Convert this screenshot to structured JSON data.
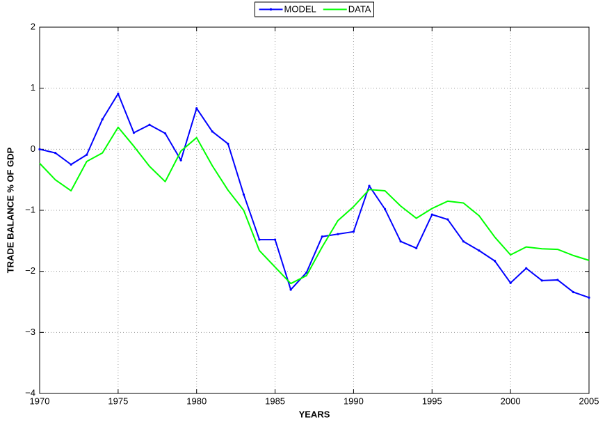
{
  "chart_data": {
    "type": "line",
    "x_label": "YEARS",
    "y_label": "TRADE BALANCE % OF GDP",
    "x": [
      1970,
      1971,
      1972,
      1973,
      1974,
      1975,
      1976,
      1977,
      1978,
      1979,
      1980,
      1981,
      1982,
      1983,
      1984,
      1985,
      1986,
      1987,
      1988,
      1989,
      1990,
      1991,
      1992,
      1993,
      1994,
      1995,
      1996,
      1997,
      1998,
      1999,
      2000,
      2001,
      2002,
      2003,
      2004,
      2005
    ],
    "series": [
      {
        "name": "MODEL",
        "color": "#0000ff",
        "marker": true,
        "values": [
          0.0,
          -0.06,
          -0.25,
          -0.09,
          0.49,
          0.91,
          0.27,
          0.4,
          0.26,
          -0.18,
          0.67,
          0.29,
          0.09,
          -0.74,
          -1.48,
          -1.48,
          -2.3,
          -2.02,
          -1.43,
          -1.39,
          -1.35,
          -0.6,
          -0.98,
          -1.51,
          -1.62,
          -1.07,
          -1.15,
          -1.51,
          -1.66,
          -1.83,
          -2.19,
          -1.95,
          -2.15,
          -2.14,
          -2.34,
          -2.43
        ]
      },
      {
        "name": "DATA",
        "color": "#00ff00",
        "marker": false,
        "values": [
          -0.23,
          -0.5,
          -0.68,
          -0.2,
          -0.06,
          0.36,
          0.05,
          -0.28,
          -0.53,
          -0.03,
          0.19,
          -0.27,
          -0.67,
          -1.0,
          -1.66,
          -1.93,
          -2.2,
          -2.07,
          -1.6,
          -1.17,
          -0.94,
          -0.66,
          -0.68,
          -0.93,
          -1.13,
          -0.97,
          -0.85,
          -0.88,
          -1.09,
          -1.44,
          -1.73,
          -1.6,
          -1.63,
          -1.64,
          -1.74,
          -1.82
        ]
      }
    ],
    "xlim": [
      1970,
      2005
    ],
    "xticks": [
      1970,
      1975,
      1980,
      1985,
      1990,
      1995,
      2000,
      2005
    ],
    "ylim": [
      -4,
      2
    ],
    "yticks": [
      {
        "value": -4,
        "label": "−4"
      },
      {
        "value": -3,
        "label": "−3"
      },
      {
        "value": -2,
        "label": "−2"
      },
      {
        "value": -1,
        "label": "−1"
      },
      0,
      1,
      2
    ],
    "grid": true,
    "legend": "top"
  }
}
